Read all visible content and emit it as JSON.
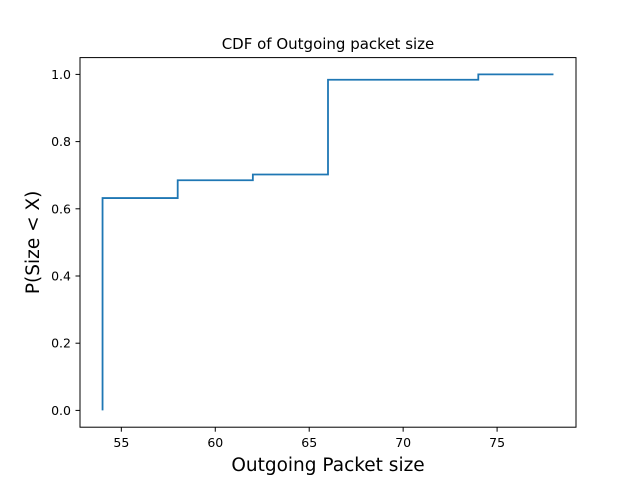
{
  "chart_data": {
    "type": "line",
    "step": "post",
    "title": "CDF of Outgoing packet size",
    "xlabel": "Outgoing Packet size",
    "ylabel": "P(Size < X)",
    "xlim": [
      52.8,
      79.2
    ],
    "ylim": [
      -0.05,
      1.05
    ],
    "xticks": [
      55,
      60,
      65,
      70,
      75
    ],
    "yticks": [
      0.0,
      0.2,
      0.4,
      0.6,
      0.8,
      1.0
    ],
    "xtick_labels": [
      "55",
      "60",
      "65",
      "70",
      "75"
    ],
    "ytick_labels": [
      "0.0",
      "0.2",
      "0.4",
      "0.6",
      "0.8",
      "1.0"
    ],
    "grid": false,
    "series": [
      {
        "color": "#1f77b4",
        "x": [
          54,
          54,
          58,
          62,
          66,
          74,
          78
        ],
        "y": [
          0.0,
          0.632,
          0.685,
          0.702,
          0.984,
          1.0,
          1.0
        ]
      }
    ]
  }
}
